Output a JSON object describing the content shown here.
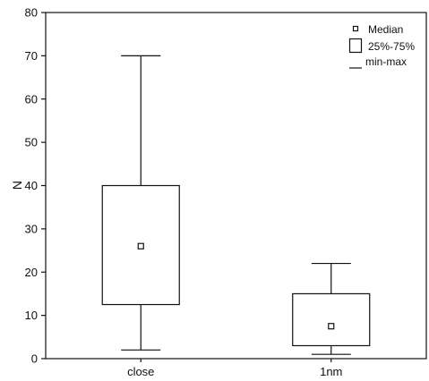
{
  "chart_data": {
    "type": "boxplot",
    "title": "",
    "xlabel": "",
    "ylabel": "N",
    "ylim": [
      0,
      80
    ],
    "yticks": [
      0,
      10,
      20,
      30,
      40,
      50,
      60,
      70,
      80
    ],
    "grid": false,
    "legend_position": "top-right",
    "legend": {
      "median": "Median",
      "box": "25%-75%",
      "whisker": "min-max"
    },
    "categories": [
      "close",
      "1nm"
    ],
    "boxes": [
      {
        "category": "close",
        "min": 2,
        "q1": 12.5,
        "median": 26,
        "q3": 40,
        "max": 70
      },
      {
        "category": "1nm",
        "min": 1,
        "q1": 3,
        "median": 7.5,
        "q3": 15,
        "max": 22
      }
    ]
  },
  "colors": {
    "stroke": "#111111",
    "background": "#ffffff"
  }
}
